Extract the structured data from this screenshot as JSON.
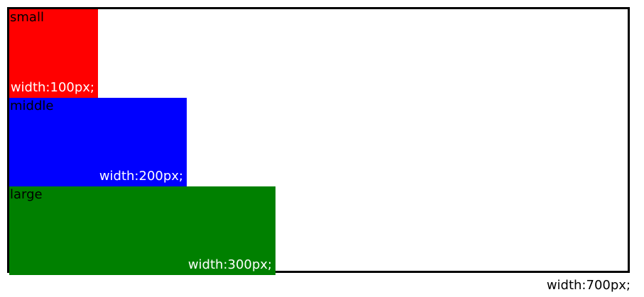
{
  "container": {
    "width_label": "width:700px;"
  },
  "boxes": [
    {
      "name": "small",
      "width_label": "width:100px;",
      "color": "#ff0000"
    },
    {
      "name": "middle",
      "width_label": "width:200px;",
      "color": "#0000ff"
    },
    {
      "name": "large",
      "width_label": "width:300px;",
      "color": "#008000"
    }
  ]
}
